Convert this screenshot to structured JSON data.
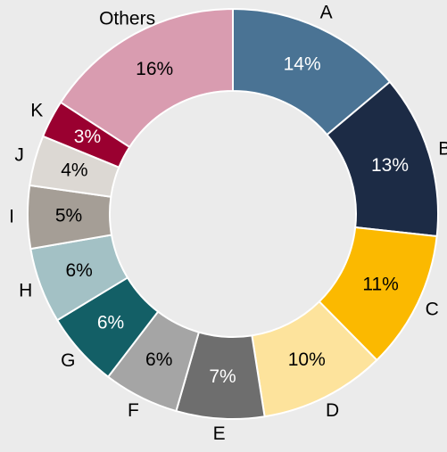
{
  "chart_data": {
    "type": "donut",
    "categories": [
      "A",
      "B",
      "C",
      "D",
      "E",
      "F",
      "G",
      "H",
      "I",
      "J",
      "K",
      "Others"
    ],
    "values": [
      14,
      13,
      11,
      10,
      7,
      6,
      6,
      6,
      5,
      4,
      3,
      16
    ],
    "value_labels": [
      "14%",
      "13%",
      "11%",
      "10%",
      "7%",
      "6%",
      "6%",
      "6%",
      "5%",
      "4%",
      "3%",
      "16%"
    ],
    "colors": [
      "#4a7394",
      "#1c2b45",
      "#fbb900",
      "#fde39c",
      "#6e6e6e",
      "#a5a5a5",
      "#135f66",
      "#a3c1c5",
      "#a59e96",
      "#dcd8d3",
      "#9a0030",
      "#d99cb0"
    ]
  }
}
